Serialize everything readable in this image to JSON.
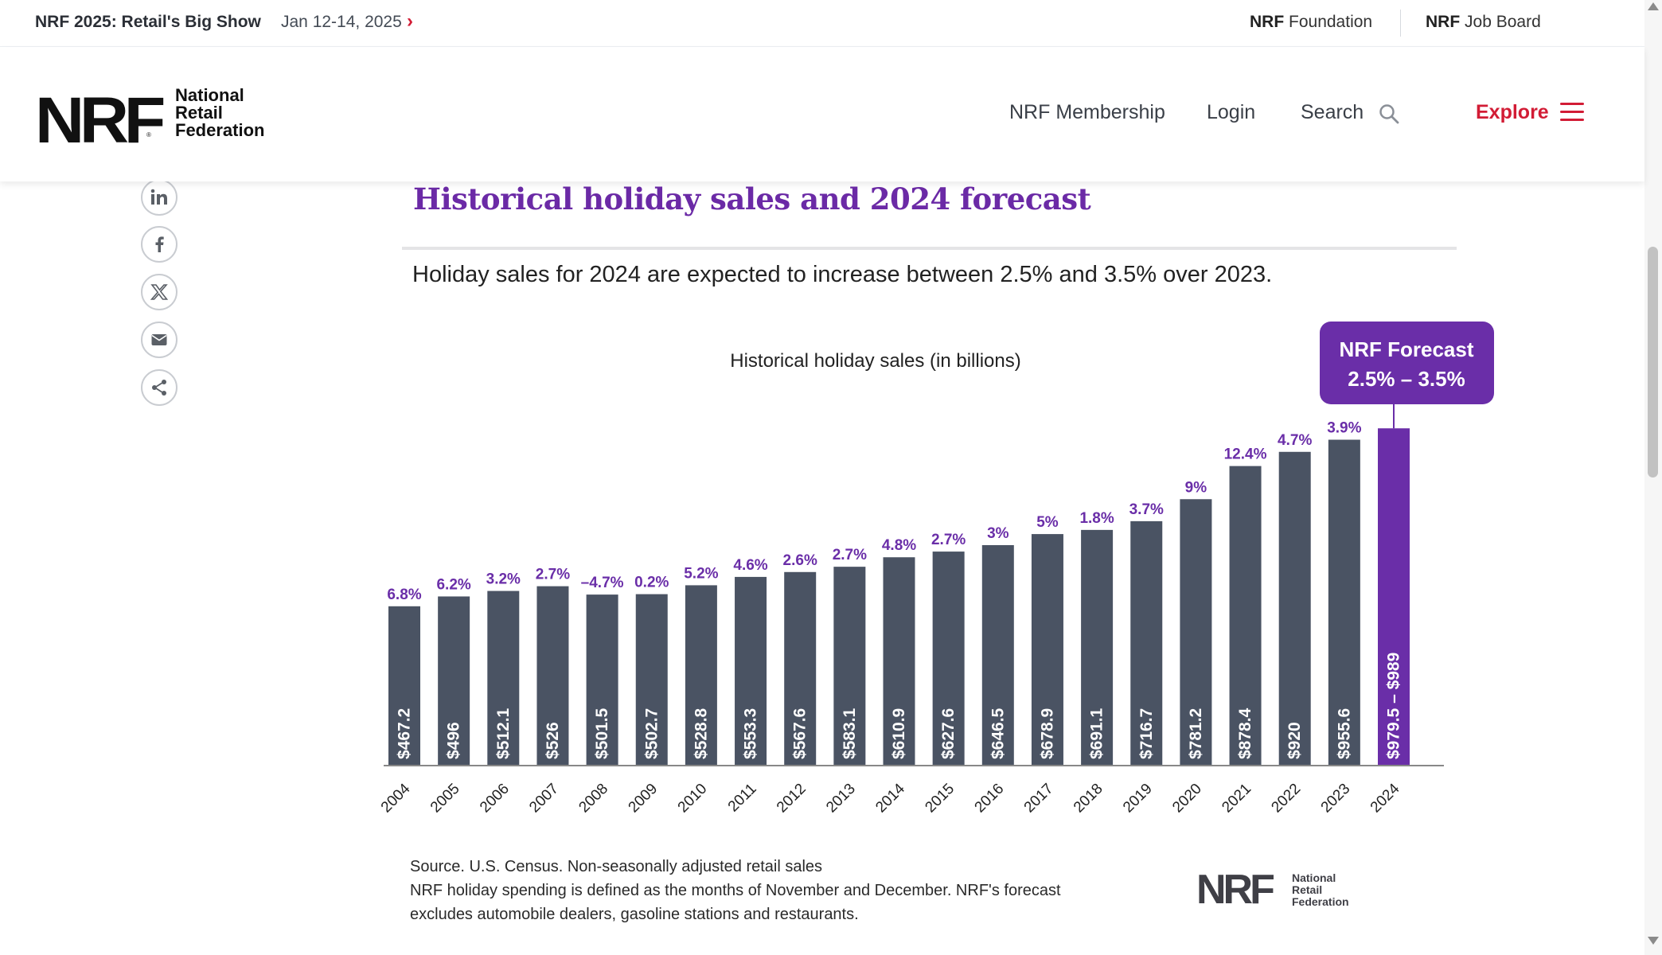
{
  "topbar": {
    "event_name": "NRF 2025: Retail's Big Show",
    "event_date": "Jan 12-14, 2025",
    "event_arrow": "›",
    "foundation_brand": "NRF",
    "foundation_label": "Foundation",
    "jobboard_brand": "NRF",
    "jobboard_label": "Job Board"
  },
  "header": {
    "logo_mark": "NRF",
    "logo_reg": "®",
    "logo_line1": "National",
    "logo_line2": "Retail",
    "logo_line3": "Federation",
    "nav_membership": "NRF Membership",
    "nav_login": "Login",
    "nav_search": "Search",
    "nav_explore": "Explore"
  },
  "share": {
    "icons": [
      "linkedin-icon",
      "facebook-icon",
      "x-icon",
      "email-icon",
      "share-icon"
    ]
  },
  "article": {
    "title": "Historical holiday sales and 2024 forecast",
    "subtitle": "Holiday sales for 2024 are expected to increase between 2.5% and 3.5% over 2023.",
    "footnote_1": "Source. U.S. Census. Non-seasonally adjusted retail sales",
    "footnote_2": "NRF holiday spending is defined as the months of November and December. NRF's forecast",
    "footnote_3": "excludes automobile dealers, gasoline stations and restaurants.",
    "footer_logo_mark": "NRF",
    "footer_logo_line1": "National",
    "footer_logo_line2": "Retail",
    "footer_logo_line3": "Federation"
  },
  "colors": {
    "bar": "#4a5363",
    "forecast_bar": "#6a2ea8",
    "growth_label": "#6a2ea8",
    "accent_red": "#d21c35"
  },
  "chart_data": {
    "type": "bar",
    "title": "Historical holiday sales (in billions)",
    "xlabel": "",
    "ylabel": "",
    "ylim": [
      0,
      1000
    ],
    "categories": [
      "2004",
      "2005",
      "2006",
      "2007",
      "2008",
      "2009",
      "2010",
      "2011",
      "2012",
      "2013",
      "2014",
      "2015",
      "2016",
      "2017",
      "2018",
      "2019",
      "2020",
      "2021",
      "2022",
      "2023",
      "2024"
    ],
    "values": [
      467.2,
      496,
      512.1,
      526,
      501.5,
      502.7,
      528.8,
      553.3,
      567.6,
      583.1,
      610.9,
      627.6,
      646.5,
      678.9,
      691.1,
      716.7,
      781.2,
      878.4,
      920,
      955.6,
      989
    ],
    "value_labels": [
      "$467.2",
      "$496",
      "$512.1",
      "$526",
      "$501.5",
      "$502.7",
      "$528.8",
      "$553.3",
      "$567.6",
      "$583.1",
      "$610.9",
      "$627.6",
      "$646.5",
      "$678.9",
      "$691.1",
      "$716.7",
      "$781.2",
      "$878.4",
      "$920",
      "$955.6",
      "$979.5 – $989"
    ],
    "growth_labels": [
      "6.8%",
      "6.2%",
      "3.2%",
      "2.7%",
      "–4.7%",
      "0.2%",
      "5.2%",
      "4.6%",
      "2.6%",
      "2.7%",
      "4.8%",
      "2.7%",
      "3%",
      "5%",
      "1.8%",
      "3.7%",
      "9%",
      "12.4%",
      "4.7%",
      "3.9%",
      ""
    ],
    "forecast_index": 20,
    "forecast_callout_line1": "NRF Forecast",
    "forecast_callout_line2": "2.5% – 3.5%"
  }
}
